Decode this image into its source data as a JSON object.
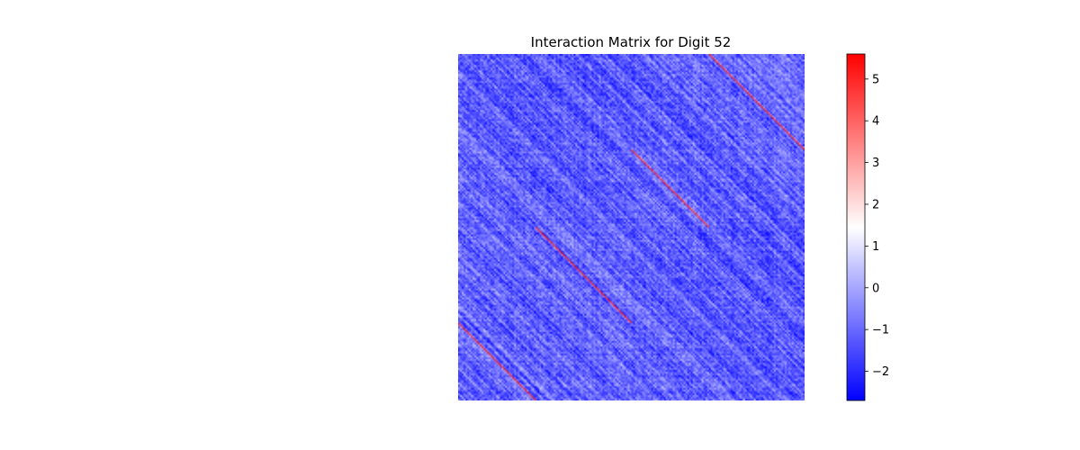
{
  "chart_data": {
    "type": "heatmap",
    "title": "Interaction Matrix for Digit 52",
    "xlabel": "",
    "ylabel": "",
    "axes_visible": false,
    "colormap": "bwr",
    "colorbar": {
      "vmin": -2.7,
      "vmax": 5.6,
      "ticks": [
        -2,
        -1,
        0,
        1,
        2,
        3,
        4,
        5
      ],
      "tick_labels": [
        "−2",
        "−1",
        "0",
        "1",
        "2",
        "3",
        "4",
        "5"
      ]
    },
    "colors": {
      "low": "#0000ff",
      "mid": "#ffffff",
      "high": "#ff0000"
    },
    "matrix": {
      "size": 192,
      "blocks": 2,
      "background_value_range": [
        -2.5,
        0.8
      ],
      "peak_value": 5.4,
      "description_of_structure": "banded diagonal stripes within each block; bright red off-diagonal lines at block-shift offsets"
    }
  }
}
